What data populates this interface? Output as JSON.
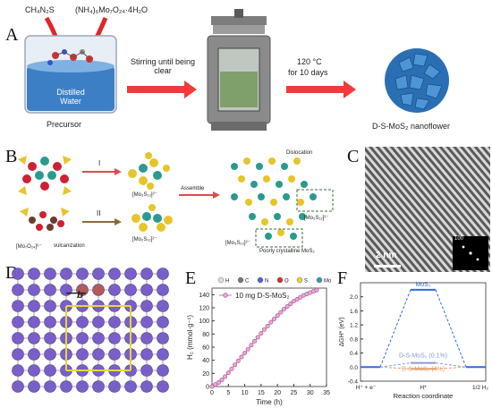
{
  "panelA": {
    "label": "A",
    "reagent1": "CH₄N₂S",
    "reagent2": "(NH₄)₆Mo₇O₂₄·4H₂O",
    "beaker_text": "Distilled Water",
    "precursor": "Precursor",
    "step1": "Stirring until being clear",
    "step2_line1": "120 °C",
    "step2_line2": "for 10 days",
    "product": "D-S-MoS₂ nanoflower"
  },
  "panelB": {
    "label": "B",
    "route1": "I",
    "route2": "II",
    "cluster1": "[Mo₃S₁₃]²⁻",
    "cluster2": "[Mo₃S₁₃]²⁻",
    "cluster3": "[Mo₂S₁₂]²⁻",
    "start1": "[Mo₇O₂₄]⁶⁻",
    "vulcanization": "vulcanization",
    "assemble": "Assemble",
    "dislocation": "Dislocation",
    "inset1": "[Mo₃S₁₃]²⁻",
    "inset2": "[Mo₂S₁₂]²⁻",
    "poorly": "Poorly crystalline MoS₂"
  },
  "panelC": {
    "label": "C",
    "scale": "2 nm",
    "fft_label": "100"
  },
  "panelD": {
    "label": "D",
    "b_label": "b"
  },
  "panelE": {
    "label": "E",
    "legend_atoms": [
      "H",
      "C",
      "N",
      "O",
      "S",
      "Mo"
    ],
    "legend_colors": [
      "#dddddd",
      "#777777",
      "#5566cc",
      "#cc3333",
      "#e8d23a",
      "#3a9aa0"
    ],
    "series_name": "10 mg D-S-MoS₂",
    "chart_data": {
      "type": "line",
      "title": "",
      "xlabel": "Time (h)",
      "ylabel": "H₂ (mmol·g⁻¹)",
      "xlim": [
        0,
        35
      ],
      "ylim": [
        0,
        150
      ],
      "xticks": [
        0,
        5,
        10,
        15,
        20,
        25,
        30,
        35
      ],
      "yticks": [
        0,
        20,
        40,
        60,
        80,
        100,
        120,
        140
      ],
      "series": [
        {
          "name": "10 mg D-S-MoS₂",
          "x": [
            0,
            1,
            2,
            3,
            4,
            5,
            6,
            7,
            8,
            9,
            10,
            11,
            12,
            13,
            14,
            15,
            16,
            17,
            18,
            19,
            20,
            21,
            22,
            23,
            24,
            25,
            26,
            27,
            28,
            29,
            30,
            31,
            32
          ],
          "y": [
            0,
            3,
            6,
            10,
            15,
            21,
            27,
            33,
            39,
            45,
            51,
            57,
            63,
            69,
            75,
            81,
            87,
            92,
            98,
            103,
            108,
            113,
            118,
            122,
            126,
            130,
            133,
            136,
            139,
            141,
            143,
            145,
            147
          ]
        }
      ]
    }
  },
  "panelF": {
    "label": "F",
    "ylabel": "ΔGH* (eV)",
    "xlabel": "Reaction coordinate",
    "x_ticks": [
      "H⁺ + e⁻",
      "H*",
      "1/2 H₂"
    ],
    "yticks": [
      -0.4,
      0.0,
      0.4,
      0.8,
      1.2,
      1.6,
      2.0
    ],
    "levels": [
      {
        "name": "MoS₂",
        "value": 2.2,
        "color": "#2d6bd8"
      },
      {
        "name": "D-S-MoS₂ (0.1%)",
        "value": 0.12,
        "color": "#8a9ad0"
      },
      {
        "name": "D-S-MoS₂ (4%)",
        "value": -0.05,
        "color": "#e0a070"
      }
    ]
  }
}
